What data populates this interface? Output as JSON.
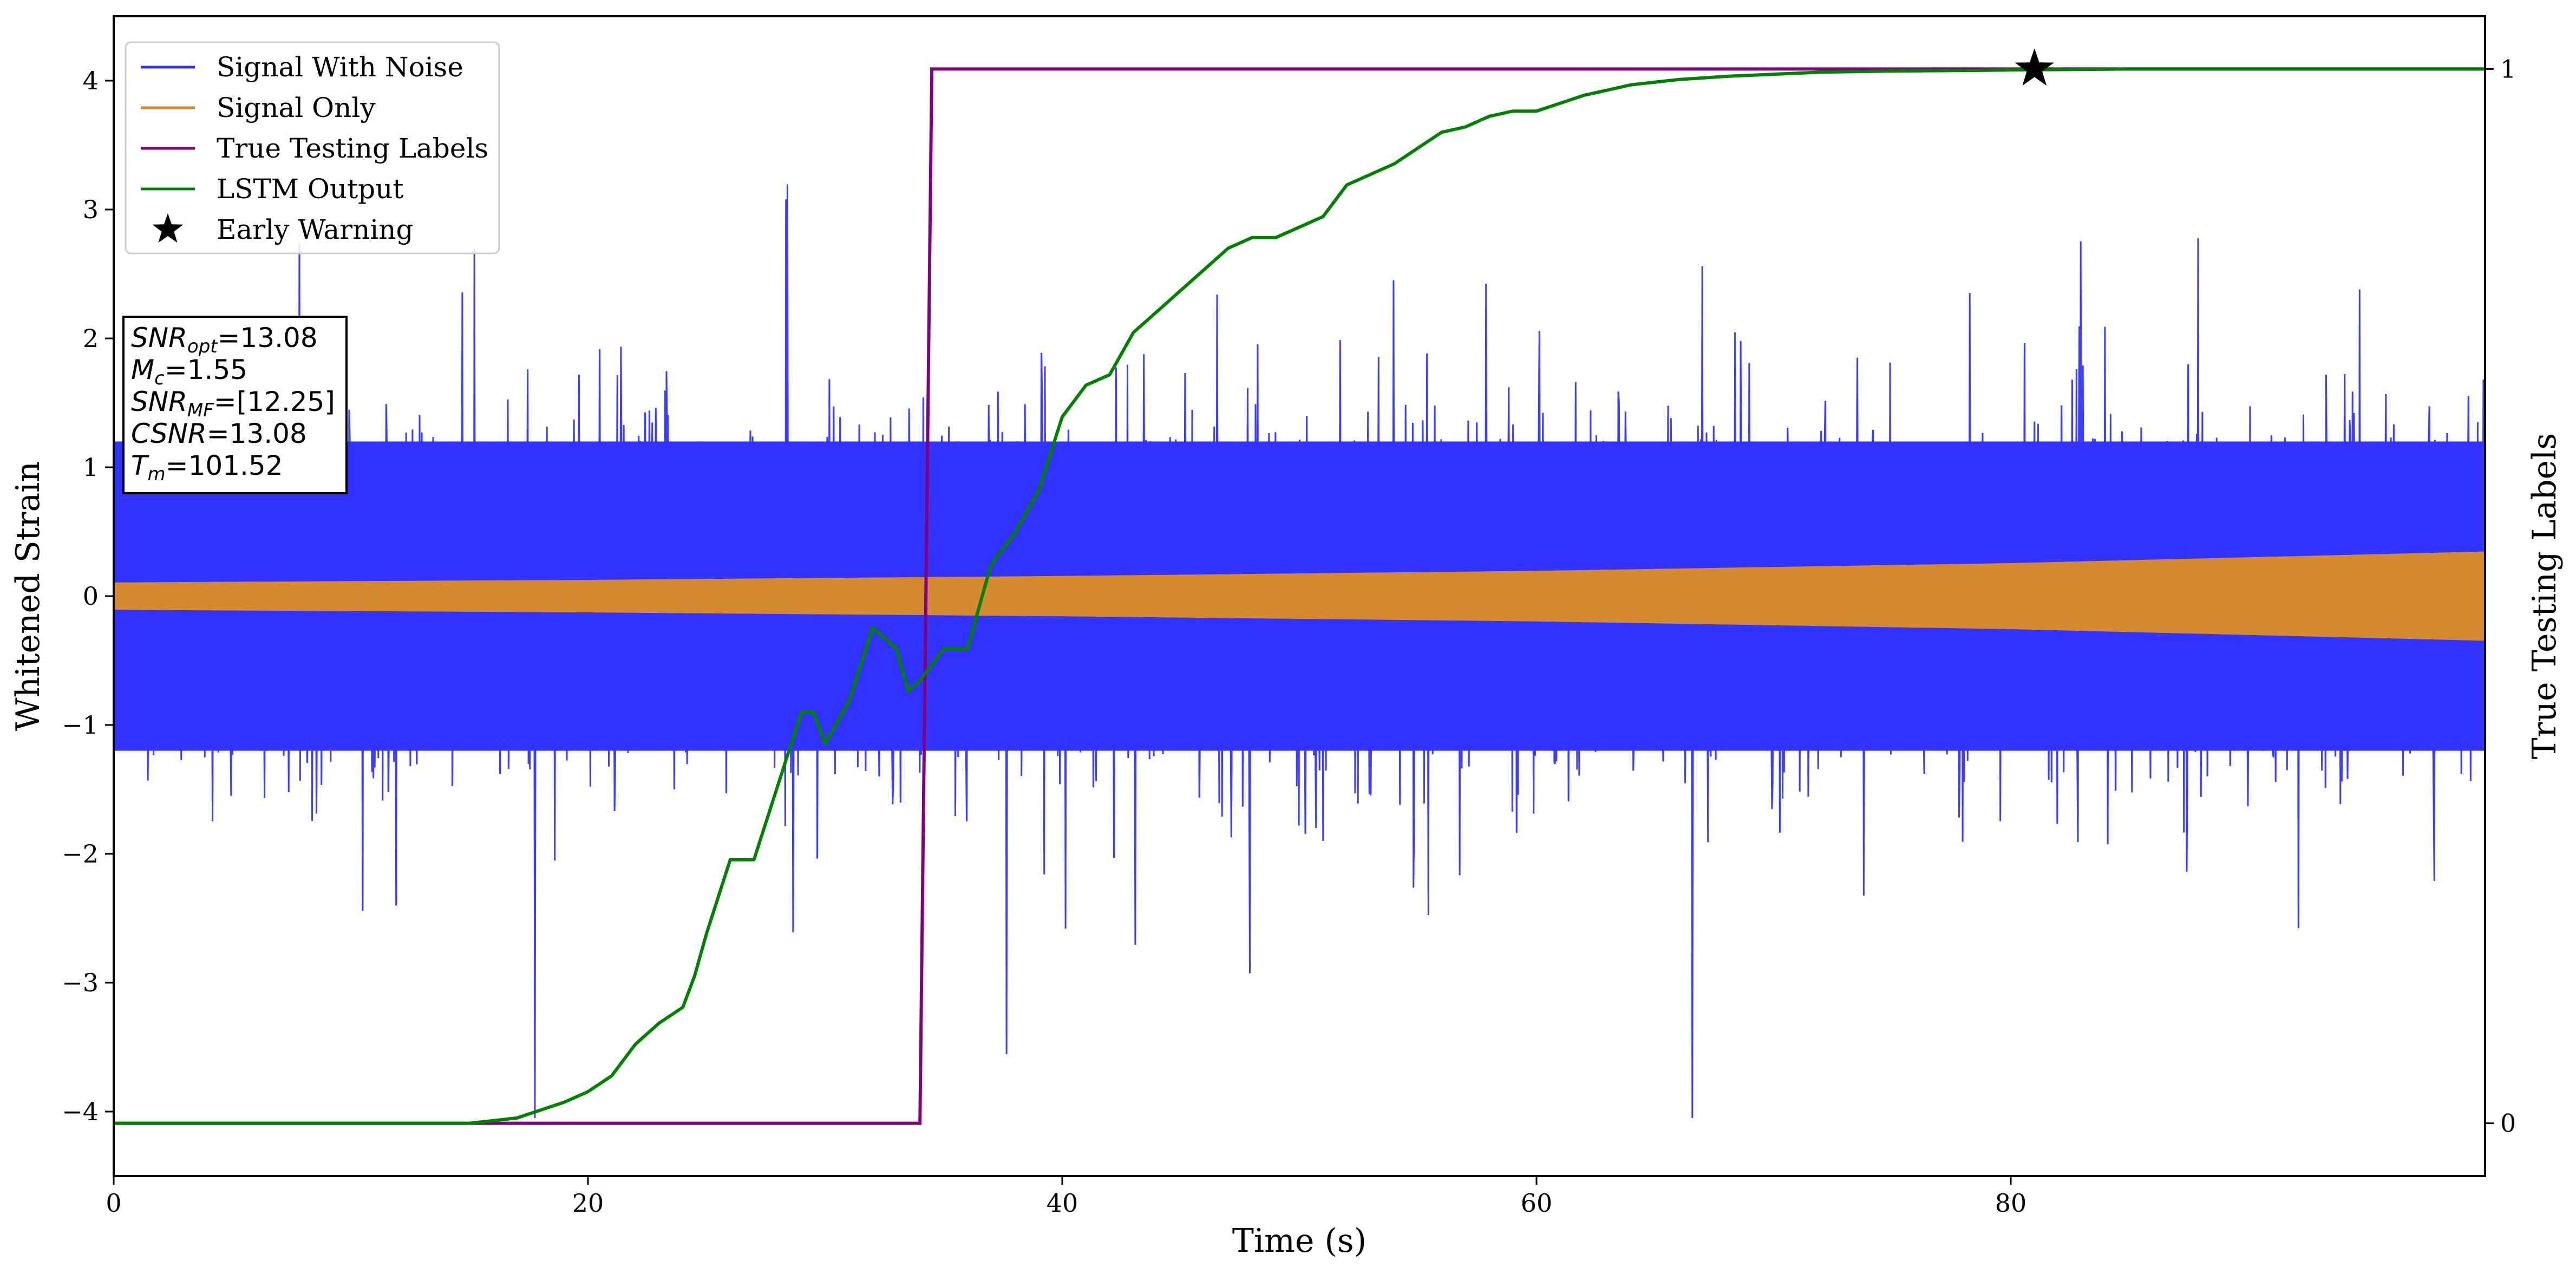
{
  "chart_data": {
    "type": "line",
    "xlabel": "Time (s)",
    "ylabel": "Whitened Strain",
    "y2label": "True Testing Labels",
    "xlim": [
      0,
      100
    ],
    "ylim": [
      -4.5,
      4.5
    ],
    "y2lim": [
      -0.05,
      1.05
    ],
    "x_ticks": [
      0,
      20,
      40,
      60,
      80
    ],
    "y_ticks": [
      -4,
      -3,
      -2,
      -1,
      0,
      1,
      2,
      3,
      4
    ],
    "y2_ticks": [
      0,
      1
    ],
    "legend_position": "top-left",
    "grid": false,
    "colors": {
      "noise": "#3333ff",
      "signal": "#d68a30",
      "labels": "#800080",
      "lstm": "#008000",
      "warning": "#000000"
    },
    "series": [
      {
        "name": "Signal With Noise",
        "kind": "noise-band",
        "axis": "left",
        "x_range": [
          0,
          100
        ],
        "typical_amplitude": 1.2,
        "peak_min": -4.05,
        "peak_max": 3.7
      },
      {
        "name": "Signal Only",
        "kind": "chirp-envelope",
        "axis": "left",
        "x": [
          0,
          20,
          40,
          60,
          80,
          100
        ],
        "envelope": [
          0.1,
          0.12,
          0.15,
          0.19,
          0.25,
          0.34
        ]
      },
      {
        "name": "True Testing Labels",
        "kind": "step",
        "axis": "right",
        "x": [
          0,
          34.0,
          34.5,
          100
        ],
        "y": [
          0,
          0,
          1,
          1
        ]
      },
      {
        "name": "LSTM Output",
        "kind": "line",
        "axis": "right",
        "x": [
          0,
          15,
          17,
          19,
          20,
          21,
          22,
          23,
          24,
          24.5,
          25,
          26,
          27,
          28,
          29,
          29.5,
          30,
          31,
          32,
          33,
          33.5,
          34,
          35,
          36,
          37,
          38,
          39,
          40,
          41,
          42,
          43,
          44,
          45,
          46,
          47,
          48,
          49,
          50,
          51,
          52,
          53,
          54,
          55,
          56,
          57,
          58,
          59,
          60,
          62,
          64,
          66,
          68,
          70,
          72,
          75,
          80,
          85,
          90,
          100
        ],
        "y": [
          0,
          0,
          0.005,
          0.02,
          0.03,
          0.045,
          0.075,
          0.095,
          0.11,
          0.14,
          0.18,
          0.25,
          0.25,
          0.32,
          0.39,
          0.39,
          0.36,
          0.4,
          0.47,
          0.45,
          0.41,
          0.42,
          0.45,
          0.45,
          0.53,
          0.56,
          0.6,
          0.67,
          0.7,
          0.71,
          0.75,
          0.77,
          0.79,
          0.81,
          0.83,
          0.84,
          0.84,
          0.85,
          0.86,
          0.89,
          0.9,
          0.91,
          0.925,
          0.94,
          0.945,
          0.955,
          0.96,
          0.96,
          0.975,
          0.985,
          0.99,
          0.993,
          0.995,
          0.997,
          0.998,
          0.999,
          1.0,
          1.0,
          1.0
        ]
      },
      {
        "name": "Early Warning",
        "kind": "marker",
        "axis": "right",
        "marker": "star",
        "x": 81,
        "y": 1.0
      }
    ],
    "info_box": {
      "lines": [
        {
          "var": "SNR",
          "sub": "opt",
          "value": "=13.08"
        },
        {
          "var": "M",
          "sub": "c",
          "value": "=1.55"
        },
        {
          "var": "SNR",
          "sub": "MF",
          "value": "=[12.25]"
        },
        {
          "var": "CSNR",
          "sub": "",
          "value": "=13.08"
        },
        {
          "var": "T",
          "sub": "m",
          "value": "=101.52"
        }
      ]
    }
  }
}
